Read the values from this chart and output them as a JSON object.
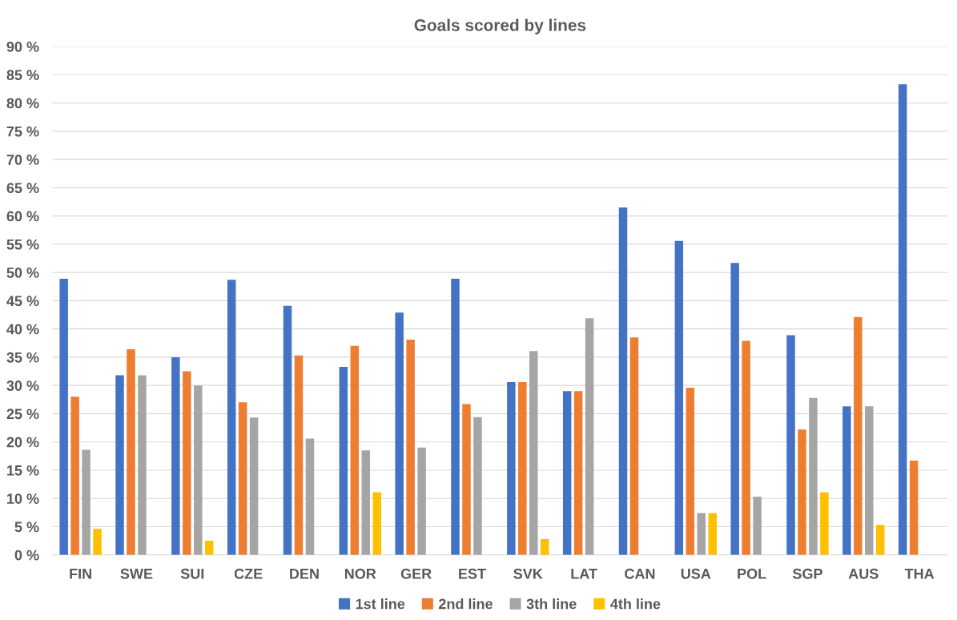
{
  "chart_data": {
    "type": "bar",
    "title": "Goals scored by lines",
    "categories": [
      "FIN",
      "SWE",
      "SUI",
      "CZE",
      "DEN",
      "NOR",
      "GER",
      "EST",
      "SVK",
      "LAT",
      "CAN",
      "USA",
      "POL",
      "SGP",
      "AUS",
      "THA"
    ],
    "series": [
      {
        "name": "1st line",
        "color": "#4472c4",
        "values": [
          48.9,
          31.8,
          35,
          48.7,
          44.1,
          33.3,
          42.9,
          48.9,
          30.6,
          29,
          61.5,
          55.6,
          51.7,
          38.9,
          26.3,
          83.3
        ]
      },
      {
        "name": "2nd line",
        "color": "#ed7d31",
        "values": [
          28,
          36.4,
          32.5,
          27,
          35.3,
          37,
          38.1,
          26.7,
          30.6,
          29,
          38.5,
          29.6,
          37.9,
          22.2,
          42.1,
          16.7
        ]
      },
      {
        "name": "3th line",
        "color": "#a5a5a5",
        "values": [
          18.6,
          31.8,
          30,
          24.3,
          20.6,
          18.5,
          19,
          24.4,
          36.1,
          41.9,
          0,
          7.4,
          10.3,
          27.8,
          26.3,
          0
        ]
      },
      {
        "name": "4th line",
        "color": "#ffc000",
        "values": [
          4.6,
          0,
          2.5,
          0,
          0,
          11.1,
          0,
          0,
          2.8,
          0,
          0,
          7.4,
          0,
          11.1,
          5.3,
          0
        ]
      }
    ],
    "ylim": [
      0,
      90
    ],
    "yticks": [
      {
        "value": 0,
        "label": "0 %"
      },
      {
        "value": 5,
        "label": "5 %"
      },
      {
        "value": 10,
        "label": "10 %"
      },
      {
        "value": 15,
        "label": "15 %"
      },
      {
        "value": 20,
        "label": "20 %"
      },
      {
        "value": 25,
        "label": "25 %"
      },
      {
        "value": 30,
        "label": "30 %"
      },
      {
        "value": 35,
        "label": "35 %"
      },
      {
        "value": 40,
        "label": "40 %"
      },
      {
        "value": 45,
        "label": "45 %"
      },
      {
        "value": 50,
        "label": "50 %"
      },
      {
        "value": 55,
        "label": "55 %"
      },
      {
        "value": 60,
        "label": "60 %"
      },
      {
        "value": 65,
        "label": "65 %"
      },
      {
        "value": 70,
        "label": "70 %"
      },
      {
        "value": 75,
        "label": "75 %"
      },
      {
        "value": 80,
        "label": "80 %"
      },
      {
        "value": 85,
        "label": "85 %"
      },
      {
        "value": 90,
        "label": "90 %"
      }
    ],
    "grid": "y",
    "legend": "bottom"
  }
}
